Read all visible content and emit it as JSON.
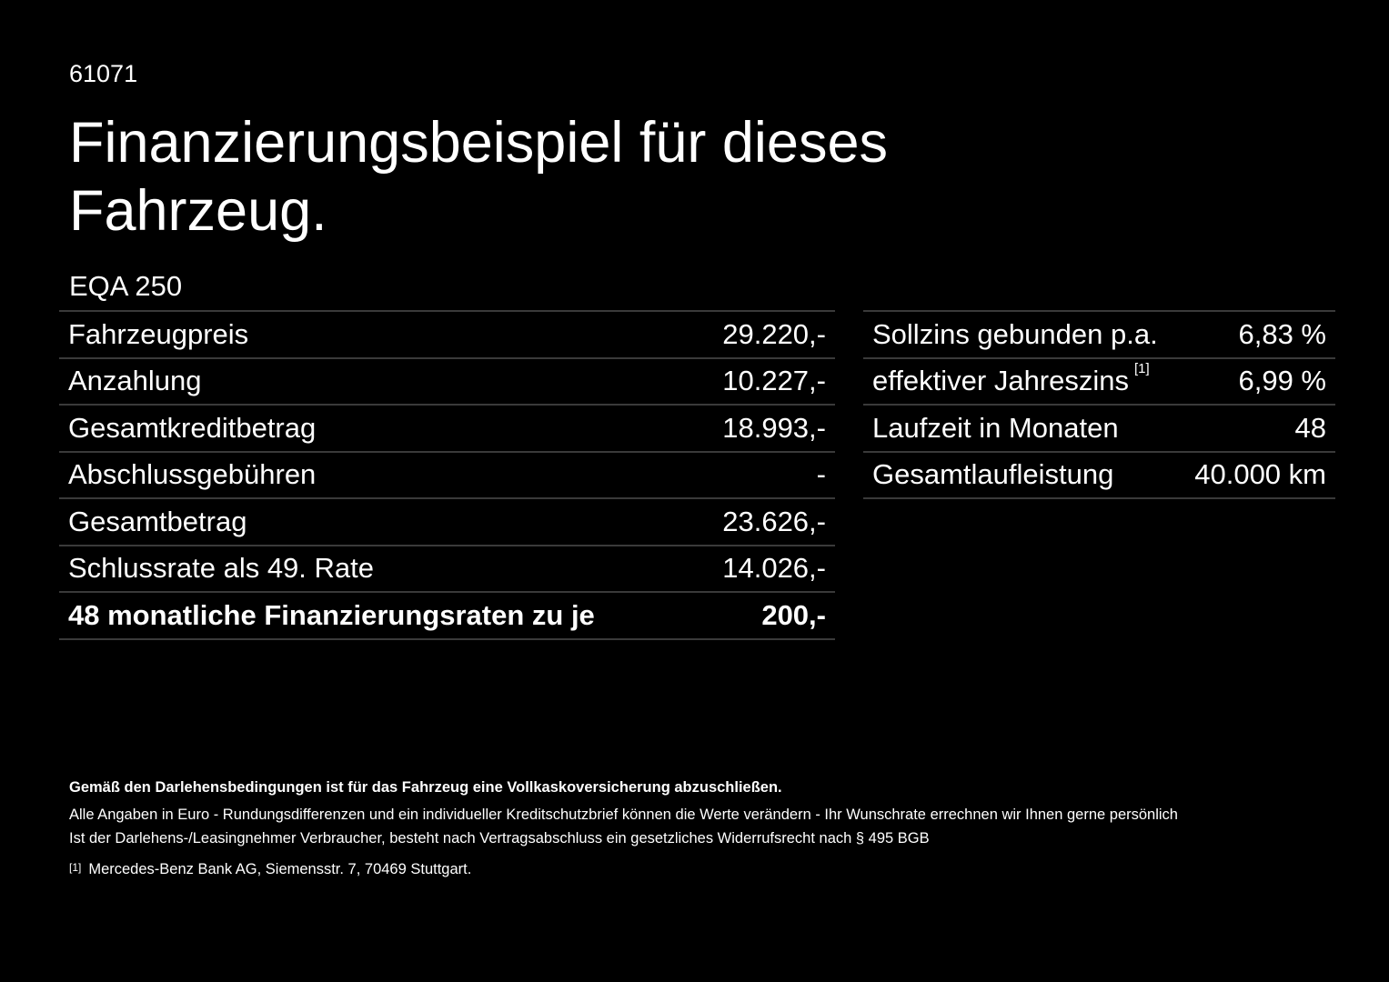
{
  "offer_id": "61071",
  "title": "Finanzierungsbeispiel für dieses Fahrzeug.",
  "model": "EQA 250",
  "left_table": [
    {
      "label": "Fahrzeugpreis",
      "value": "29.220,-"
    },
    {
      "label": "Anzahlung",
      "value": "10.227,-"
    },
    {
      "label": "Gesamtkreditbetrag",
      "value": "18.993,-"
    },
    {
      "label": "Abschlussgebühren",
      "value": "-"
    },
    {
      "label": "Gesamtbetrag",
      "value": "23.626,-"
    },
    {
      "label": "Schlussrate als 49. Rate",
      "value": "14.026,-"
    },
    {
      "label": "48 monatliche Finanzierungsraten zu je",
      "value": "200,-"
    }
  ],
  "right_table": [
    {
      "label": "Sollzins gebunden p.a.",
      "value": "6,83 %"
    },
    {
      "label": "effektiver Jahreszins",
      "footnote": "[1]",
      "value": "6,99 %"
    },
    {
      "label": "Laufzeit in Monaten",
      "value": "48"
    },
    {
      "label": "Gesamtlaufleistung",
      "value": "40.000 km"
    }
  ],
  "notes": {
    "bold": "Gemäß den Darlehensbedingungen ist für das Fahrzeug eine Vollkaskoversicherung abzuschließen.",
    "line1": "Alle Angaben in Euro - Rundungsdifferenzen und ein individueller Kreditschutzbrief können die Werte verändern - Ihr Wunschrate errechnen wir Ihnen gerne persönlich",
    "line2": "Ist der Darlehens-/Leasingnehmer Verbraucher, besteht nach Vertragsabschluss ein gesetzliches Widerrufsrecht nach § 495 BGB",
    "footnote_mark": "[1]",
    "footnote": "Mercedes-Benz Bank AG, Siemensstr. 7, 70469 Stuttgart."
  }
}
